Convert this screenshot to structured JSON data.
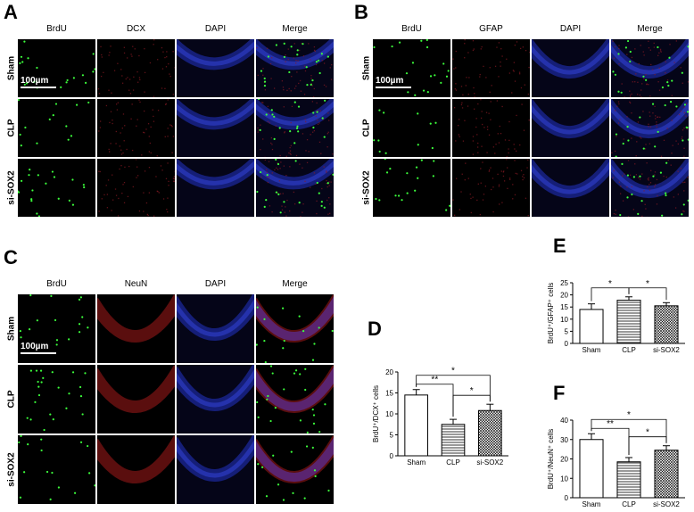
{
  "panels": {
    "A": {
      "label": "A",
      "headers": [
        "BrdU",
        "DCX",
        "DAPI",
        "Merge"
      ],
      "rows": [
        "Sham",
        "CLP",
        "si-SOX2"
      ],
      "scale": "100µm"
    },
    "B": {
      "label": "B",
      "headers": [
        "BrdU",
        "GFAP",
        "DAPI",
        "Merge"
      ],
      "rows": [
        "Sham",
        "CLP",
        "si-SOX2"
      ],
      "scale": "100µm"
    },
    "C": {
      "label": "C",
      "headers": [
        "BrdU",
        "NeuN",
        "DAPI",
        "Merge"
      ],
      "rows": [
        "Sham",
        "CLP",
        "si-SOX2"
      ],
      "scale": "100µm"
    }
  },
  "chart_data": [
    {
      "panel": "D",
      "type": "bar",
      "categories": [
        "Sham",
        "CLP",
        "si-SOX2"
      ],
      "values": [
        14.5,
        7.5,
        10.8
      ],
      "errors": [
        1.3,
        1.2,
        1.5
      ],
      "ylabel": "BrdU⁺/DCX⁺ cells",
      "ylim": [
        0,
        20
      ],
      "yticks": [
        0,
        5,
        10,
        15,
        20
      ],
      "patterns": [
        "open",
        "hlines",
        "crosshatch"
      ],
      "significance": [
        {
          "from": 0,
          "to": 1,
          "label": "**"
        },
        {
          "from": 0,
          "to": 2,
          "label": "*"
        },
        {
          "from": 1,
          "to": 2,
          "label": "*"
        }
      ]
    },
    {
      "panel": "E",
      "type": "bar",
      "categories": [
        "Sham",
        "CLP",
        "si-SOX2"
      ],
      "values": [
        14.0,
        17.8,
        15.5
      ],
      "errors": [
        2.3,
        1.4,
        1.3
      ],
      "ylabel": "BrdU⁺/GFAP⁺ cells",
      "ylim": [
        0,
        25
      ],
      "yticks": [
        0,
        5,
        10,
        15,
        20,
        25
      ],
      "patterns": [
        "open",
        "hlines",
        "crosshatch"
      ],
      "significance": [
        {
          "from": 0,
          "to": 1,
          "label": "*"
        },
        {
          "from": 1,
          "to": 2,
          "label": "*"
        }
      ]
    },
    {
      "panel": "F",
      "type": "bar",
      "categories": [
        "Sham",
        "CLP",
        "si-SOX2"
      ],
      "values": [
        30.0,
        18.5,
        24.5
      ],
      "errors": [
        3.0,
        2.2,
        2.3
      ],
      "ylabel": "BrdU⁺/NeuN⁺ cells",
      "ylim": [
        0,
        40
      ],
      "yticks": [
        0,
        10,
        20,
        30,
        40
      ],
      "patterns": [
        "open",
        "hlines",
        "crosshatch"
      ],
      "significance": [
        {
          "from": 0,
          "to": 1,
          "label": "**"
        },
        {
          "from": 0,
          "to": 2,
          "label": "*"
        },
        {
          "from": 1,
          "to": 2,
          "label": "*"
        }
      ]
    }
  ]
}
